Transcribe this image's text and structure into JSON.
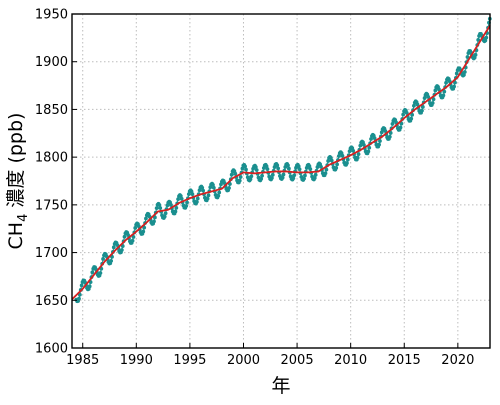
{
  "chart_data": {
    "type": "line",
    "title": "",
    "xlabel": "年",
    "ylabel_main": "CH",
    "ylabel_sub": "4",
    "ylabel_rest": " 濃度 (ppb)",
    "xlim": [
      1984,
      2023
    ],
    "ylim": [
      1600,
      1950
    ],
    "xticks": [
      1985,
      1990,
      1995,
      2000,
      2005,
      2010,
      2015,
      2020
    ],
    "yticks": [
      1600,
      1650,
      1700,
      1750,
      1800,
      1850,
      1900,
      1950
    ],
    "grid": true,
    "colors": {
      "monthly": "#1a8f8f",
      "trend": "#d62020"
    },
    "series": [
      {
        "kind": "scatter-line",
        "seasonal_amplitude_ppb": 8,
        "x": [
          1984.0,
          1985.0,
          1986.0,
          1987.0,
          1988.0,
          1989.0,
          1990.0,
          1991.0,
          1992.0,
          1993.0,
          1994.0,
          1995.0,
          1996.0,
          1997.0,
          1998.0,
          1999.0,
          2000.0,
          2001.0,
          2002.0,
          2003.0,
          2004.0,
          2005.0,
          2006.0,
          2007.0,
          2008.0,
          2009.0,
          2010.0,
          2011.0,
          2012.0,
          2013.0,
          2014.0,
          2015.0,
          2016.0,
          2017.0,
          2018.0,
          2019.0,
          2020.0,
          2021.0,
          2022.0,
          2023.0
        ],
        "trend": [
          1651,
          1662,
          1676,
          1690,
          1702,
          1713,
          1722,
          1732,
          1743,
          1745,
          1752,
          1757,
          1761,
          1764,
          1767,
          1778,
          1784,
          1783,
          1784,
          1785,
          1785,
          1784,
          1784,
          1785,
          1792,
          1797,
          1802,
          1808,
          1815,
          1822,
          1831,
          1841,
          1850,
          1858,
          1866,
          1874,
          1884,
          1902,
          1920,
          1938
        ]
      }
    ]
  }
}
